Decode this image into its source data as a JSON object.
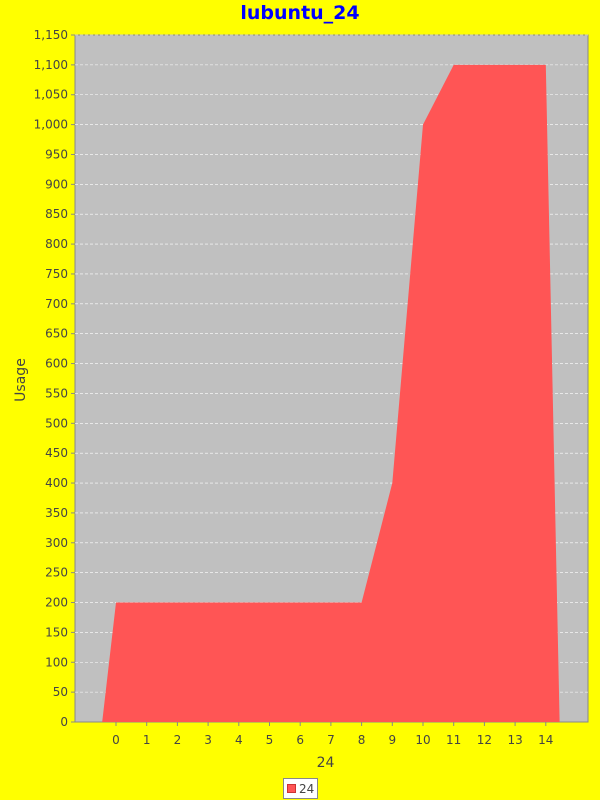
{
  "chart_data": {
    "type": "area",
    "title": "lubuntu_24",
    "xlabel": "24",
    "ylabel": "Usage",
    "categories": [
      "0",
      "1",
      "2",
      "3",
      "4",
      "5",
      "6",
      "7",
      "8",
      "9",
      "10",
      "11",
      "12",
      "13",
      "14"
    ],
    "series": [
      {
        "name": "24",
        "values": [
          200,
          200,
          200,
          200,
          200,
          200,
          200,
          200,
          200,
          400,
          1000,
          1100,
          1100,
          1100,
          1100
        ]
      }
    ],
    "ylim": [
      0,
      1150
    ],
    "ytick_step": 50,
    "grid": true,
    "legend_position": "bottom",
    "colors": {
      "background": "#ffff00",
      "plot_background": "#c0c0c0",
      "series": "#ff5555",
      "title": "#0000ff",
      "gridline": "#ffffff"
    }
  }
}
